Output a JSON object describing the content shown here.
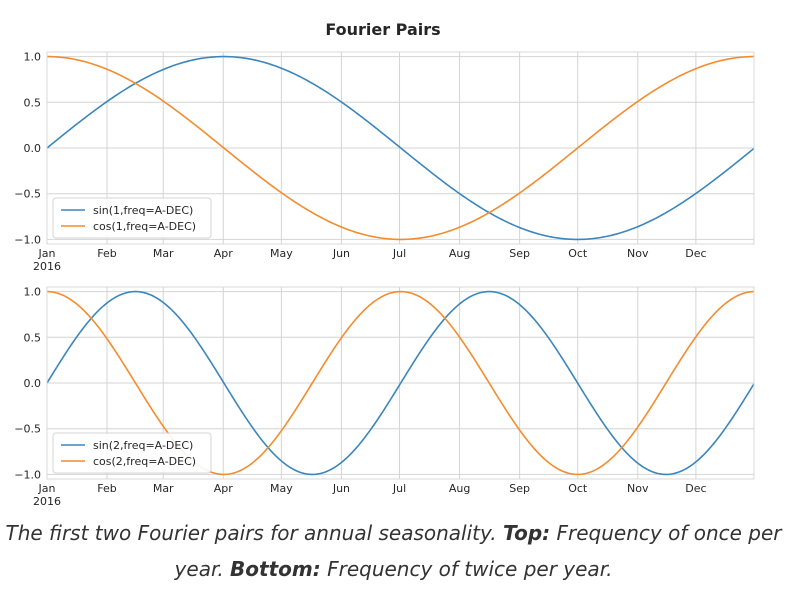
{
  "figure": {
    "title": "Fourier Pairs"
  },
  "caption": {
    "part1": "The first two Fourier pairs for annual seasonality.",
    "top_label": "Top:",
    "part2": "Frequency of once per year.",
    "bottom_label": "Bottom:",
    "part3": "Frequency of twice per year."
  },
  "chart_data": [
    {
      "type": "line",
      "year": "2016",
      "xlabels": [
        "Jan",
        "Feb",
        "Mar",
        "Apr",
        "May",
        "Jun",
        "Jul",
        "Aug",
        "Sep",
        "Oct",
        "Nov",
        "Dec"
      ],
      "xlim_days": [
        0,
        365
      ],
      "ylim": [
        -1.05,
        1.05
      ],
      "yticks": [
        1.0,
        0.5,
        0.0,
        -0.5,
        -1.0
      ],
      "ytick_labels": [
        "1.0",
        "0.5",
        "0.0",
        "−0.5",
        "−1.0"
      ],
      "grid": true,
      "legend_position": "lower-left",
      "series": [
        {
          "name": "sin(1,freq=A-DEC)",
          "function": "sin",
          "order": 1,
          "color": "#3a86bd"
        },
        {
          "name": "cos(1,freq=A-DEC)",
          "function": "cos",
          "order": 1,
          "color": "#f48c2e"
        }
      ]
    },
    {
      "type": "line",
      "year": "2016",
      "xlabels": [
        "Jan",
        "Feb",
        "Mar",
        "Apr",
        "May",
        "Jun",
        "Jul",
        "Aug",
        "Sep",
        "Oct",
        "Nov",
        "Dec"
      ],
      "xlim_days": [
        0,
        365
      ],
      "ylim": [
        -1.05,
        1.05
      ],
      "yticks": [
        1.0,
        0.5,
        0.0,
        -0.5,
        -1.0
      ],
      "ytick_labels": [
        "1.0",
        "0.5",
        "0.0",
        "−0.5",
        "−1.0"
      ],
      "grid": true,
      "legend_position": "lower-left",
      "series": [
        {
          "name": "sin(2,freq=A-DEC)",
          "function": "sin",
          "order": 2,
          "color": "#3a86bd"
        },
        {
          "name": "cos(2,freq=A-DEC)",
          "function": "cos",
          "order": 2,
          "color": "#f48c2e"
        }
      ]
    }
  ]
}
